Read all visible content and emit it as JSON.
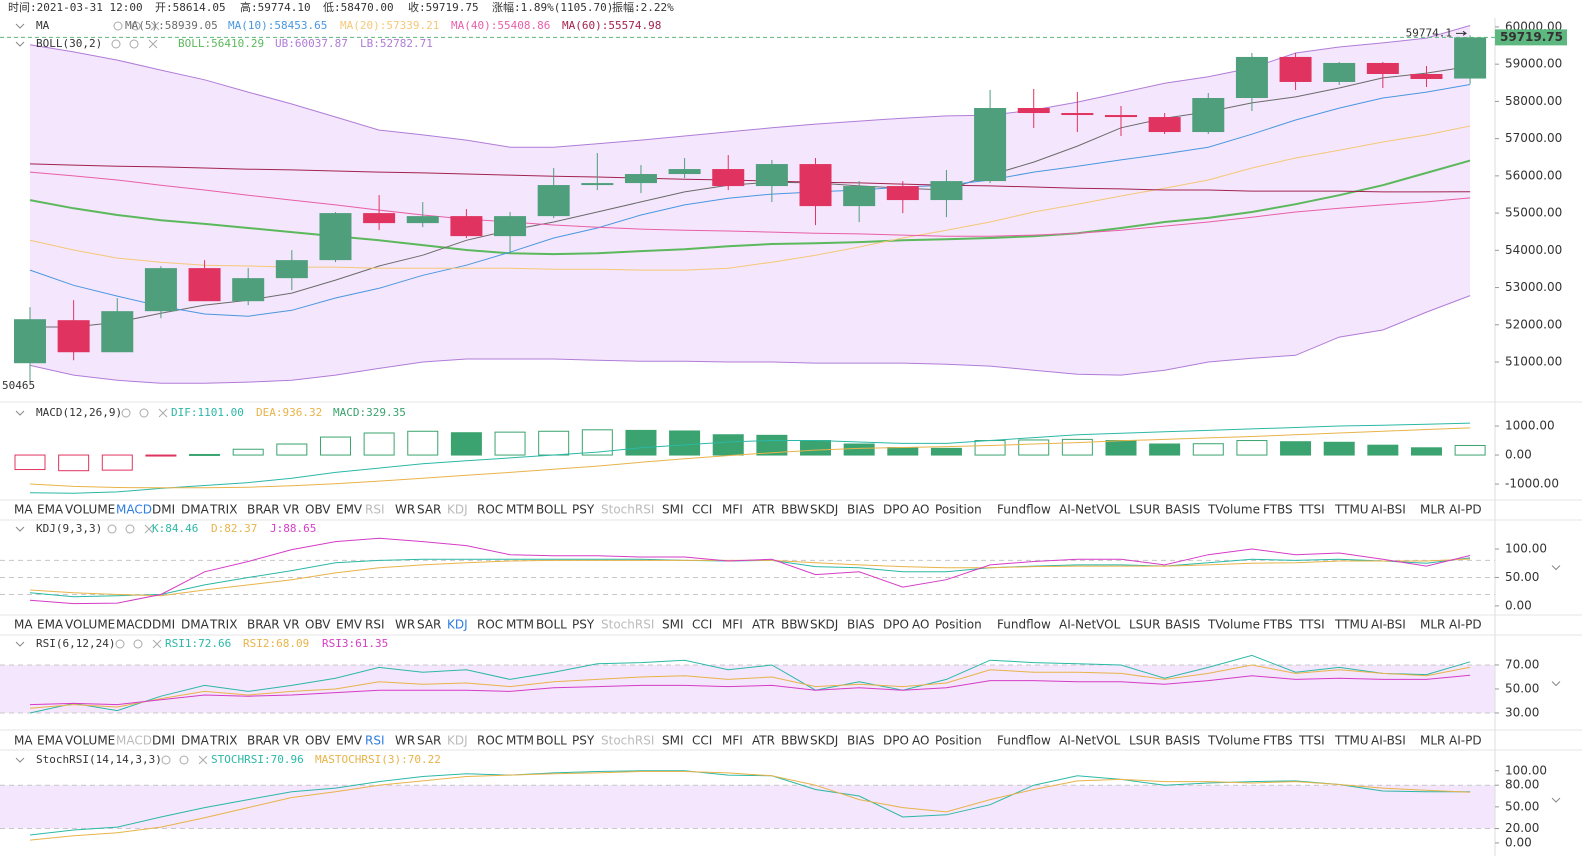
{
  "header": {
    "time": "时间:2021-03-31 12:00",
    "open": "开:58614.05",
    "high": "高:59774.10",
    "low": "低:58470.00",
    "close": "收:59719.75",
    "change": "涨幅:1.89%(1105.70)",
    "amplitude": "振幅:2.22%"
  },
  "candles": {
    "up_color": "#4f9e7c",
    "down_color": "#e0335f",
    "open": [
      50968,
      52124,
      51263,
      52366,
      53522,
      52634,
      53253,
      53737,
      55000,
      54731,
      54919,
      54382,
      54919,
      55753,
      55806,
      56049,
      56183,
      55726,
      56317,
      55188,
      55726,
      55350,
      55860,
      57823,
      57688,
      57634,
      57580,
      57177,
      58091,
      59194,
      58522,
      59032,
      58736,
      58614.05
    ],
    "high": [
      52473,
      52661,
      52715,
      53575,
      53737,
      53522,
      54005,
      55027,
      55484,
      55296,
      55108,
      55027,
      56210,
      56613,
      56290,
      56479,
      56559,
      56425,
      56479,
      55860,
      55860,
      56156,
      58306,
      58333,
      58253,
      57876,
      57688,
      58226,
      59301,
      59301,
      59059,
      59059,
      58951,
      59774.1
    ],
    "low": [
      50465,
      51048,
      51263,
      52177,
      52634,
      52527,
      52930,
      53683,
      54543,
      54624,
      54328,
      53952,
      54866,
      55618,
      55538,
      55941,
      55618,
      55296,
      54677,
      54758,
      55000,
      54892,
      55806,
      57285,
      57177,
      57070,
      57123,
      57123,
      57742,
      58306,
      58441,
      58360,
      58387,
      58470.0
    ],
    "close": [
      52150,
      51263,
      52366,
      53522,
      52634,
      53253,
      53737,
      55000,
      54731,
      54919,
      54382,
      54919,
      55753,
      55806,
      56049,
      56183,
      55726,
      56317,
      55188,
      55726,
      55350,
      55860,
      57823,
      57688,
      57634,
      57580,
      57177,
      58091,
      59194,
      58522,
      59032,
      58736,
      58602,
      59719.75
    ]
  },
  "main": {
    "ylim": [
      49980,
      60240
    ],
    "yticks": [
      {
        "value": 60000,
        "label": "60000.00"
      },
      {
        "value": 59000,
        "label": "59000.00"
      },
      {
        "value": 58000,
        "label": "58000.00"
      },
      {
        "value": 57000,
        "label": "57000.00"
      },
      {
        "value": 56000,
        "label": "56000.00"
      },
      {
        "value": 55000,
        "label": "55000.00"
      },
      {
        "value": 54000,
        "label": "54000.00"
      },
      {
        "value": 53000,
        "label": "53000.00"
      },
      {
        "value": 52000,
        "label": "52000.00"
      },
      {
        "value": 51000,
        "label": "51000.00"
      }
    ],
    "ma_title": "MA",
    "boll_title": "BOLL(30,2)",
    "ma": [
      {
        "name": "MA(5):58939.05",
        "color": "#6b6b6b",
        "values": [
          51940,
          51940,
          52070,
          52310,
          52530,
          52660,
          52850,
          53200,
          53580,
          53870,
          54270,
          54540,
          54760,
          55030,
          55300,
          55570,
          55750,
          55830,
          55810,
          55730,
          55670,
          55620,
          56020,
          56370,
          56800,
          57290,
          57550,
          57720,
          57960,
          58120,
          58360,
          58630,
          58760,
          58939.05
        ]
      },
      {
        "name": "MA(10):58453.65",
        "color": "#4a97e0",
        "values": [
          53470,
          53060,
          52770,
          52500,
          52290,
          52230,
          52390,
          52720,
          52980,
          53330,
          53600,
          53950,
          54330,
          54600,
          54950,
          55220,
          55400,
          55510,
          55570,
          55620,
          55700,
          55750,
          55890,
          56100,
          56260,
          56430,
          56590,
          56770,
          57120,
          57500,
          57820,
          58090,
          58250,
          58453.65
        ]
      },
      {
        "name": "MA(20):57339.21",
        "color": "#f5c878",
        "values": [
          54270,
          54010,
          53790,
          53680,
          53600,
          53580,
          53550,
          53550,
          53520,
          53520,
          53520,
          53520,
          53490,
          53490,
          53470,
          53470,
          53520,
          53680,
          53870,
          54090,
          54330,
          54540,
          54760,
          55030,
          55240,
          55460,
          55670,
          55890,
          56210,
          56480,
          56690,
          56910,
          57100,
          57339.21
        ]
      },
      {
        "name": "MA(40):55408.86",
        "color": "#e85fa8",
        "values": [
          56100,
          56000,
          55890,
          55750,
          55620,
          55480,
          55350,
          55220,
          55080,
          54950,
          54840,
          54760,
          54680,
          54620,
          54570,
          54540,
          54520,
          54490,
          54460,
          54440,
          54410,
          54380,
          54380,
          54410,
          54460,
          54540,
          54650,
          54760,
          54890,
          55030,
          55130,
          55220,
          55300,
          55408.86
        ]
      },
      {
        "name": "MA(60):55574.98",
        "color": "#a3234f",
        "values": [
          56320,
          56290,
          56260,
          56240,
          56210,
          56180,
          56160,
          56130,
          56100,
          56080,
          56050,
          56020,
          55990,
          55970,
          55940,
          55910,
          55890,
          55860,
          55830,
          55810,
          55780,
          55750,
          55730,
          55700,
          55670,
          55650,
          55620,
          55620,
          55590,
          55590,
          55590,
          55570,
          55570,
          55574.98
        ]
      }
    ],
    "boll": [
      {
        "name": "BOLL:56410.29",
        "color": "#5cb85c",
        "values": [
          55350,
          55130,
          54950,
          54810,
          54710,
          54600,
          54490,
          54380,
          54270,
          54140,
          54010,
          53920,
          53900,
          53920,
          53980,
          54030,
          54110,
          54170,
          54190,
          54220,
          54270,
          54300,
          54330,
          54380,
          54460,
          54600,
          54760,
          54870,
          55030,
          55240,
          55480,
          55750,
          56080,
          56410.29
        ]
      },
      {
        "name": "UB:60037.87",
        "color": "#b07cd8",
        "values": [
          59520,
          59330,
          59110,
          58840,
          58580,
          58250,
          57930,
          57580,
          57230,
          57100,
          56960,
          56770,
          56770,
          56860,
          56960,
          57070,
          57180,
          57290,
          57390,
          57470,
          57550,
          57610,
          57630,
          57770,
          57980,
          58230,
          58490,
          58660,
          58900,
          59300,
          59460,
          59570,
          59700,
          60037.87
        ]
      },
      {
        "name": "LB:52782.71",
        "color": "#b07cd8",
        "values": [
          50910,
          50650,
          50510,
          50430,
          50430,
          50460,
          50510,
          50650,
          50830,
          51000,
          51080,
          51080,
          51080,
          51050,
          51020,
          51020,
          51000,
          51000,
          50970,
          50970,
          50970,
          50940,
          50890,
          50780,
          50670,
          50650,
          50780,
          51000,
          51100,
          51180,
          51670,
          51860,
          52340,
          52782.71
        ]
      }
    ],
    "band_color": "#f4e6fc",
    "last_price": {
      "value": 59719.75,
      "label": "59719.75",
      "color": "#5cb87e"
    },
    "high_marker": {
      "value": 59774.1,
      "label": "59774.1"
    },
    "low_marker": {
      "value": 50465,
      "label": "50465"
    }
  },
  "macd": {
    "title": "MACD(12,26,9)",
    "ylim": [
      -1550,
      1760
    ],
    "yticks": [
      {
        "value": 1000,
        "label": "1000.00"
      },
      {
        "value": 0,
        "label": "0.00"
      },
      {
        "value": -1000,
        "label": "-1000.00"
      }
    ],
    "lines": [
      {
        "name": "DIF:1101.00",
        "color": "#2bb8a6",
        "values": [
          -1300,
          -1320,
          -1270,
          -1150,
          -1050,
          -950,
          -800,
          -600,
          -450,
          -300,
          -200,
          -100,
          0,
          100,
          250,
          350,
          450,
          500,
          500,
          450,
          400,
          400,
          500,
          600,
          700,
          750,
          800,
          850,
          900,
          950,
          1000,
          1030,
          1060,
          1101.0
        ]
      },
      {
        "name": "DEA:936.32",
        "color": "#e8b34a",
        "values": [
          -1000,
          -1080,
          -1120,
          -1130,
          -1130,
          -1110,
          -1060,
          -990,
          -900,
          -800,
          -700,
          -600,
          -490,
          -380,
          -250,
          -130,
          -20,
          80,
          170,
          230,
          260,
          290,
          330,
          380,
          430,
          490,
          540,
          590,
          640,
          700,
          760,
          820,
          880,
          936.32
        ]
      }
    ],
    "hist": {
      "name": "MACD:329.35",
      "up_color": "#3aa36f",
      "down_color": "#e0335f",
      "values": [
        -500,
        -540,
        -520,
        -30,
        20,
        200,
        380,
        620,
        760,
        820,
        770,
        790,
        820,
        870,
        850,
        830,
        700,
        680,
        500,
        380,
        260,
        230,
        500,
        520,
        540,
        500,
        380,
        390,
        500,
        460,
        440,
        340,
        250,
        329.35
      ]
    }
  },
  "kdj": {
    "title": "KDJ(9,3,3)",
    "ylim": [
      -16,
      151
    ],
    "yticks": [
      {
        "value": 100,
        "label": "100.00"
      },
      {
        "value": 50,
        "label": "50.00"
      },
      {
        "value": 0,
        "label": "0.00"
      }
    ],
    "levels": [
      20,
      50,
      80
    ],
    "band": false,
    "lines": [
      {
        "name": "K:84.46",
        "color": "#2bb8a6",
        "values": [
          23,
          16,
          18,
          20,
          37,
          50,
          62,
          76,
          80,
          82,
          82,
          82,
          82,
          82,
          82,
          80,
          79,
          80,
          69,
          67,
          60,
          60,
          67,
          70,
          72,
          72,
          70,
          76,
          82,
          80,
          82,
          79,
          75,
          84.46
        ]
      },
      {
        "name": "D:82.37",
        "color": "#e8b34a",
        "values": [
          28,
          23,
          20,
          18,
          28,
          37,
          46,
          58,
          67,
          72,
          76,
          79,
          80,
          80,
          80,
          80,
          80,
          80,
          76,
          72,
          69,
          67,
          67,
          69,
          70,
          70,
          70,
          72,
          75,
          76,
          79,
          79,
          79,
          82.37
        ]
      },
      {
        "name": "J:88.65",
        "color": "#d53cc6",
        "values": [
          10,
          4,
          5,
          20,
          60,
          78,
          99,
          113,
          119,
          113,
          106,
          90,
          88,
          88,
          86,
          86,
          79,
          82,
          55,
          60,
          33,
          46,
          72,
          78,
          82,
          82,
          72,
          90,
          100,
          90,
          93,
          82,
          70,
          88.65
        ]
      }
    ]
  },
  "rsi": {
    "title": "RSI(6,12,24)",
    "ylim": [
      15.8,
      93.3
    ],
    "yticks": [
      {
        "value": 70,
        "label": "70.00"
      },
      {
        "value": 50,
        "label": "50.00"
      },
      {
        "value": 30,
        "label": "30.00"
      }
    ],
    "levels": [
      30,
      70
    ],
    "band": true,
    "lines": [
      {
        "name": "RSI1:72.66",
        "color": "#2bb8a6",
        "values": [
          30,
          38,
          32,
          44,
          53,
          48,
          53,
          59,
          68,
          64,
          66,
          58,
          64,
          71,
          72,
          74,
          66,
          70,
          49,
          56,
          49,
          58,
          74,
          72,
          71,
          70,
          59,
          68,
          78,
          64,
          68,
          63,
          62,
          72.66
        ]
      },
      {
        "name": "RSI2:68.09",
        "color": "#e8b34a",
        "values": [
          34,
          37,
          35,
          42,
          48,
          45,
          48,
          50,
          56,
          54,
          55,
          52,
          56,
          58,
          60,
          61,
          58,
          60,
          52,
          54,
          52,
          55,
          66,
          64,
          64,
          63,
          58,
          63,
          70,
          63,
          66,
          63,
          61,
          68.09
        ]
      },
      {
        "name": "RSI3:61.35",
        "color": "#d53cc6",
        "values": [
          37,
          38,
          37,
          41,
          45,
          44,
          45,
          47,
          49,
          49,
          49,
          48,
          51,
          52,
          53,
          53,
          52,
          53,
          49,
          51,
          49,
          51,
          57,
          57,
          56,
          56,
          54,
          57,
          61,
          58,
          59,
          58,
          58,
          61.35
        ]
      }
    ]
  },
  "stochrsi": {
    "title": "StochRSI(14,14,3,3)",
    "ylim": [
      -7,
      126
    ],
    "yticks": [
      {
        "value": 100,
        "label": "100.00"
      },
      {
        "value": 80,
        "label": "80.00"
      },
      {
        "value": 50,
        "label": "50.00"
      },
      {
        "value": 20,
        "label": "20.00"
      },
      {
        "value": 0,
        "label": "0.00"
      }
    ],
    "levels": [
      20,
      80
    ],
    "band": true,
    "lines": [
      {
        "name": "STOCHRSI:70.96",
        "color": "#2bb8a6",
        "values": [
          11,
          18,
          22,
          36,
          49,
          60,
          71,
          76,
          85,
          92,
          96,
          94,
          97,
          99,
          100,
          100,
          94,
          93,
          74,
          65,
          36,
          39,
          53,
          80,
          93,
          88,
          80,
          83,
          85,
          86,
          81,
          72,
          71,
          70.96
        ]
      },
      {
        "name": "MASTOCHRSI(3):70.22",
        "color": "#e8b34a",
        "values": [
          4,
          10,
          14,
          22,
          35,
          49,
          63,
          71,
          80,
          86,
          92,
          94,
          96,
          97,
          99,
          99,
          97,
          93,
          80,
          60,
          49,
          43,
          60,
          74,
          86,
          88,
          85,
          85,
          83,
          85,
          81,
          76,
          73,
          70.22
        ]
      }
    ]
  },
  "tabs": {
    "items": [
      "MA",
      "EMA",
      "VOLUME",
      "MACD",
      "DMI",
      "DMA",
      "TRIX",
      "BRAR",
      "VR",
      "OBV",
      "EMV",
      "RSI",
      "WR",
      "SAR",
      "KDJ",
      "ROC",
      "MTM",
      "BOLL",
      "PSY",
      "StochRSI",
      "SMI",
      "CCI",
      "MFI",
      "ATR",
      "BBW",
      "SKDJ",
      "BIAS",
      "DPO",
      "AO",
      "Position",
      "Fundflow",
      "AI-NetVOL",
      "LSUR",
      "BASIS",
      "TVolume",
      "FTBS",
      "TTSI",
      "TTMU",
      "AI-BSI",
      "MLR",
      "AI-PD"
    ],
    "active_color": "#2e7de1",
    "dimmed_color": "#bbbbbb",
    "bars": [
      {
        "active": 3,
        "dimmed": [
          11,
          14,
          19
        ]
      },
      {
        "active": 14,
        "dimmed": [
          19
        ]
      },
      {
        "active": 11,
        "dimmed": [
          3,
          14,
          19
        ]
      }
    ]
  }
}
